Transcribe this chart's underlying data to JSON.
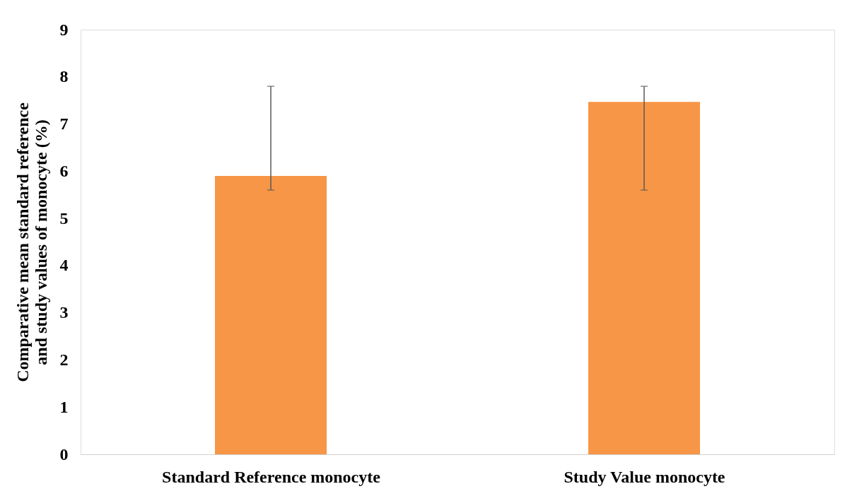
{
  "chart_data": {
    "type": "bar",
    "ylabel": "Comparative mean standard reference and study values of monocyte (%)",
    "categories": [
      "Standard Reference monocyte",
      "Study Value monocyte"
    ],
    "values": [
      5.9,
      7.47
    ],
    "color": "#f79646",
    "errors": [
      [
        5.6,
        7.8
      ],
      [
        5.6,
        7.8
      ]
    ],
    "ylim": [
      0,
      9
    ],
    "yticks": [
      0,
      1,
      2,
      3,
      4,
      5,
      6,
      7,
      8,
      9
    ],
    "grid": false
  }
}
